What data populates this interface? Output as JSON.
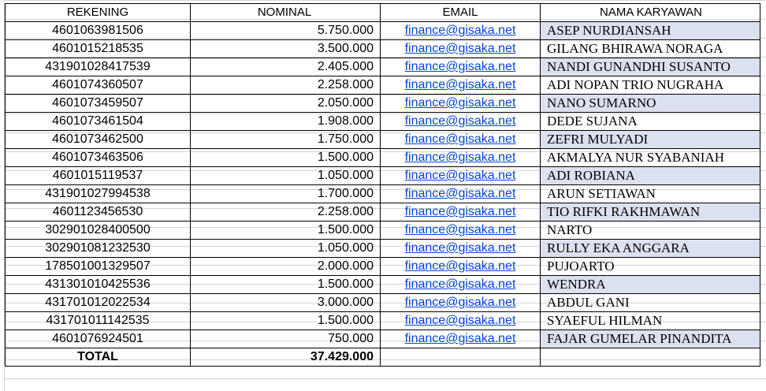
{
  "headers": {
    "rekening": "REKENING",
    "nominal": "NOMINAL",
    "email": "EMAIL",
    "nama": "NAMA KARYAWAN"
  },
  "rows": [
    {
      "rekening": "4601063981506",
      "nominal": "5.750.000",
      "email": "finance@gisaka.net",
      "nama": "ASEP NURDIANSAH",
      "shaded": true
    },
    {
      "rekening": "4601015218535",
      "nominal": "3.500.000",
      "email": "finance@gisaka.net",
      "nama": "GILANG BHIRAWA NORAGA",
      "shaded": false
    },
    {
      "rekening": "431901028417539",
      "nominal": "2.405.000",
      "email": "finance@gisaka.net",
      "nama": "NANDI GUNANDHI SUSANTO",
      "shaded": true
    },
    {
      "rekening": "4601074360507",
      "nominal": "2.258.000",
      "email": "finance@gisaka.net",
      "nama": "ADI NOPAN TRIO NUGRAHA",
      "shaded": false
    },
    {
      "rekening": "4601073459507",
      "nominal": "2.050.000",
      "email": "finance@gisaka.net",
      "nama": "NANO SUMARNO",
      "shaded": true
    },
    {
      "rekening": "4601073461504",
      "nominal": "1.908.000",
      "email": "finance@gisaka.net",
      "nama": "DEDE SUJANA",
      "shaded": false
    },
    {
      "rekening": "4601073462500",
      "nominal": "1.750.000",
      "email": "finance@gisaka.net",
      "nama": "ZEFRI MULYADI",
      "shaded": true
    },
    {
      "rekening": "4601073463506",
      "nominal": "1.500.000",
      "email": "finance@gisaka.net",
      "nama": "AKMALYA NUR SYABANIAH",
      "shaded": false
    },
    {
      "rekening": "4601015119537",
      "nominal": "1.050.000",
      "email": "finance@gisaka.net",
      "nama": "ADI ROBIANA",
      "shaded": true
    },
    {
      "rekening": "431901027994538",
      "nominal": "1.700.000",
      "email": "finance@gisaka.net",
      "nama": "ARUN SETIAWAN",
      "shaded": false
    },
    {
      "rekening": "4601123456530",
      "nominal": "2.258.000",
      "email": "finance@gisaka.net",
      "nama": "TIO RIFKI RAKHMAWAN",
      "shaded": true
    },
    {
      "rekening": "302901028400500",
      "nominal": "1.500.000",
      "email": "finance@gisaka.net",
      "nama": "NARTO",
      "shaded": false
    },
    {
      "rekening": "302901081232530",
      "nominal": "1.050.000",
      "email": "finance@gisaka.net",
      "nama": "RULLY EKA ANGGARA",
      "shaded": true
    },
    {
      "rekening": "178501001329507",
      "nominal": "2.000.000",
      "email": "finance@gisaka.net",
      "nama": "PUJOARTO",
      "shaded": false
    },
    {
      "rekening": "431301010425536",
      "nominal": "1.500.000",
      "email": "finance@gisaka.net",
      "nama": "WENDRA",
      "shaded": true
    },
    {
      "rekening": "431701012022534",
      "nominal": "3.000.000",
      "email": "finance@gisaka.net",
      "nama": "ABDUL GANI",
      "shaded": false
    },
    {
      "rekening": "431701011142535",
      "nominal": "1.500.000",
      "email": "finance@gisaka.net",
      "nama": "SYAEFUL HILMAN",
      "shaded": false
    },
    {
      "rekening": "4601076924501",
      "nominal": "750.000",
      "email": "finance@gisaka.net",
      "nama": "FAJAR GUMELAR PINANDITA",
      "shaded": true
    }
  ],
  "total": {
    "label": "TOTAL",
    "value": "37.429.000"
  },
  "colors": {
    "link": "#0645d9",
    "shade": "#dce1f0"
  }
}
